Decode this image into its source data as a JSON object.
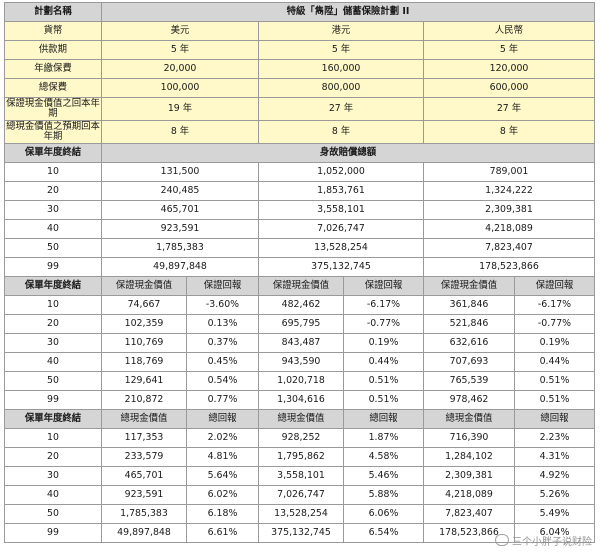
{
  "header": {
    "plan_label": "計劃名稱",
    "plan_name": "特級「雋陞」儲蓄保險計劃 II",
    "currency_label": "貨幣",
    "currencies": [
      "美元",
      "港元",
      "人民幣"
    ]
  },
  "meta_rows": [
    {
      "label": "供款期",
      "values": [
        "5 年",
        "5 年",
        "5 年"
      ]
    },
    {
      "label": "年繳保費",
      "values": [
        "20,000",
        "160,000",
        "120,000"
      ]
    },
    {
      "label": "總保費",
      "values": [
        "100,000",
        "800,000",
        "600,000"
      ]
    },
    {
      "label": "保證現金價值之回本年期",
      "values": [
        "19 年",
        "27 年",
        "27 年"
      ]
    },
    {
      "label": "總現金價值之預期回本年期",
      "values": [
        "8 年",
        "8 年",
        "8 年"
      ]
    }
  ],
  "death_section": {
    "year_label": "保單年度終結",
    "title": "身故賠償總額",
    "rows": [
      {
        "year": "10",
        "values": [
          "131,500",
          "1,052,000",
          "789,001"
        ]
      },
      {
        "year": "20",
        "values": [
          "240,485",
          "1,853,761",
          "1,324,222"
        ]
      },
      {
        "year": "30",
        "values": [
          "465,701",
          "3,558,101",
          "2,309,381"
        ]
      },
      {
        "year": "40",
        "values": [
          "923,591",
          "7,026,747",
          "4,218,089"
        ]
      },
      {
        "year": "50",
        "values": [
          "1,785,383",
          "13,528,254",
          "7,823,407"
        ]
      },
      {
        "year": "99",
        "values": [
          "49,897,848",
          "375,132,745",
          "178,523,866"
        ]
      }
    ]
  },
  "guaranteed_section": {
    "year_label": "保單年度終結",
    "value_label": "保證現金價值",
    "return_label": "保證回報",
    "rows": [
      {
        "year": "10",
        "cells": [
          "74,667",
          "-3.60%",
          "482,462",
          "-6.17%",
          "361,846",
          "-6.17%"
        ]
      },
      {
        "year": "20",
        "cells": [
          "102,359",
          "0.13%",
          "695,795",
          "-0.77%",
          "521,846",
          "-0.77%"
        ]
      },
      {
        "year": "30",
        "cells": [
          "110,769",
          "0.37%",
          "843,487",
          "0.19%",
          "632,616",
          "0.19%"
        ]
      },
      {
        "year": "40",
        "cells": [
          "118,769",
          "0.45%",
          "943,590",
          "0.44%",
          "707,693",
          "0.44%"
        ]
      },
      {
        "year": "50",
        "cells": [
          "129,641",
          "0.54%",
          "1,020,718",
          "0.51%",
          "765,539",
          "0.51%"
        ]
      },
      {
        "year": "99",
        "cells": [
          "210,872",
          "0.77%",
          "1,304,616",
          "0.51%",
          "978,462",
          "0.51%"
        ]
      }
    ]
  },
  "total_section": {
    "year_label": "保單年度終結",
    "value_label": "總現金價值",
    "return_label": "總回報",
    "rows": [
      {
        "year": "10",
        "cells": [
          "117,353",
          "2.02%",
          "928,252",
          "1.87%",
          "716,390",
          "2.23%"
        ]
      },
      {
        "year": "20",
        "cells": [
          "233,579",
          "4.81%",
          "1,795,862",
          "4.58%",
          "1,284,102",
          "4.31%"
        ]
      },
      {
        "year": "30",
        "cells": [
          "465,701",
          "5.64%",
          "3,558,101",
          "5.46%",
          "2,309,381",
          "4.92%"
        ]
      },
      {
        "year": "40",
        "cells": [
          "923,591",
          "6.02%",
          "7,026,747",
          "5.88%",
          "4,218,089",
          "5.26%"
        ]
      },
      {
        "year": "50",
        "cells": [
          "1,785,383",
          "6.18%",
          "13,528,254",
          "6.06%",
          "7,823,407",
          "5.49%"
        ]
      },
      {
        "year": "99",
        "cells": [
          "49,897,848",
          "6.61%",
          "375,132,745",
          "6.54%",
          "178,523,866",
          "6.04%"
        ]
      }
    ]
  },
  "watermark": {
    "text": "三个小胖子说财险"
  }
}
